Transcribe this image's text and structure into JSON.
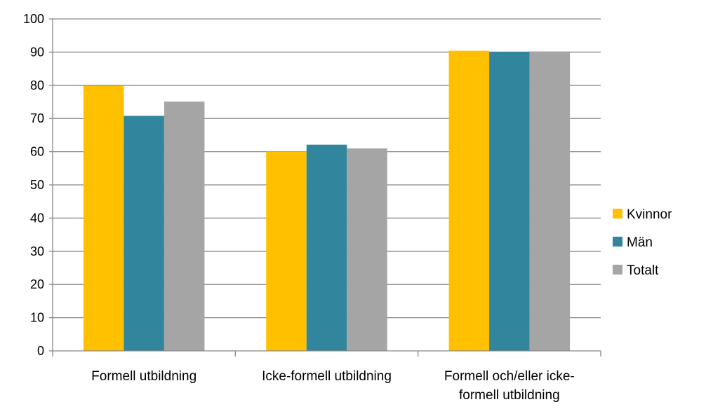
{
  "chart_data": {
    "type": "bar",
    "categories": [
      [
        "Formell utbildning"
      ],
      [
        "Icke-formell utbildning"
      ],
      [
        "Formell och/eller icke-",
        "formell utbildning"
      ]
    ],
    "series": [
      {
        "name": "Kvinnor",
        "values": [
          79.8,
          60.0,
          90.4
        ],
        "color": "#FFC000"
      },
      {
        "name": "Män",
        "values": [
          70.8,
          62.1,
          90.1
        ],
        "color": "#31859C"
      },
      {
        "name": "Totalt",
        "values": [
          75.1,
          61.0,
          90.2
        ],
        "color": "#A5A5A5"
      }
    ],
    "ylim": [
      0,
      100
    ],
    "yticks": [
      0,
      10,
      20,
      30,
      40,
      50,
      60,
      70,
      80,
      90,
      100
    ],
    "grid": true,
    "legend_position": "right",
    "title": "",
    "xlabel": "",
    "ylabel": ""
  }
}
